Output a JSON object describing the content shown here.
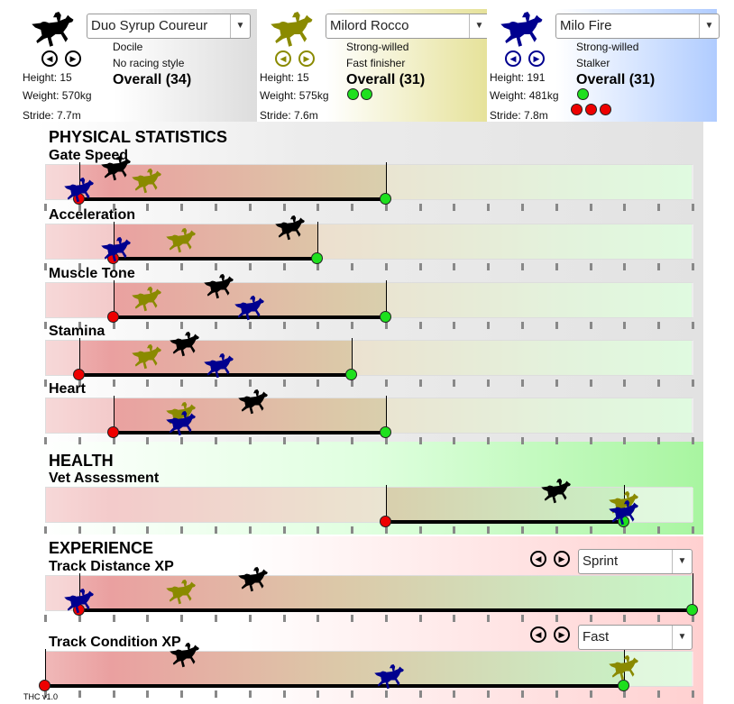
{
  "colors": {
    "horse1": "#000000",
    "horse2": "#8a8a00",
    "horse3": "#00008f",
    "min_dot": "#e00000",
    "max_dot": "#1ee01e"
  },
  "horses": [
    {
      "name": "Duo Syrup Coureur",
      "temperament": "Docile",
      "style": "No racing style",
      "overall": "Overall (34)",
      "height": "Height: 15",
      "weight": "Weight: 570kg",
      "stride": "Stride: 7.7m",
      "green_dots": 0,
      "red_dots": 0
    },
    {
      "name": "Milord Rocco",
      "temperament": "Strong-willed",
      "style": "Fast finisher",
      "overall": "Overall (31)",
      "height": "Height: 15",
      "weight": "Weight: 575kg",
      "stride": "Stride: 7.6m",
      "green_dots": 2,
      "red_dots": 0
    },
    {
      "name": "Milo Fire",
      "temperament": "Strong-willed",
      "style": "Stalker",
      "overall": "Overall (31)",
      "height": "Height: 191",
      "weight": "Weight: 481kg",
      "stride": "Stride: 7.8m",
      "green_dots": 1,
      "red_dots": 3
    }
  ],
  "sections": {
    "physical": "PHYSICAL STATISTICS",
    "health": "HEALTH",
    "experience": "EXPERIENCE"
  },
  "scale_max": 19,
  "stats": [
    {
      "label": "Gate Speed",
      "min": 1,
      "max": 10,
      "horses": [
        2.1,
        3.0,
        1.0
      ]
    },
    {
      "label": "Acceleration",
      "min": 2,
      "max": 8,
      "horses": [
        7.2,
        4.0,
        2.1
      ]
    },
    {
      "label": "Muscle Tone",
      "min": 2,
      "max": 10,
      "horses": [
        5.1,
        3.0,
        6.0
      ]
    },
    {
      "label": "Stamina",
      "min": 1,
      "max": 9,
      "horses": [
        4.1,
        3.0,
        5.1
      ]
    },
    {
      "label": "Heart",
      "min": 2,
      "max": 10,
      "horses": [
        6.1,
        4.0,
        4.0
      ]
    },
    {
      "label": "Vet Assessment",
      "min": 10,
      "max": 17,
      "horses": [
        15.0,
        17.0,
        17.0
      ]
    },
    {
      "label": "Track Distance XP",
      "min": 1,
      "max": 19,
      "horses": [
        6.1,
        4.0,
        1.0
      ],
      "selector": "Sprint"
    },
    {
      "label": "Track Condition XP",
      "min": 0,
      "max": 17,
      "horses": [
        4.1,
        17.0,
        10.1
      ],
      "selector": "Fast"
    }
  ],
  "version": "THC v1.0"
}
